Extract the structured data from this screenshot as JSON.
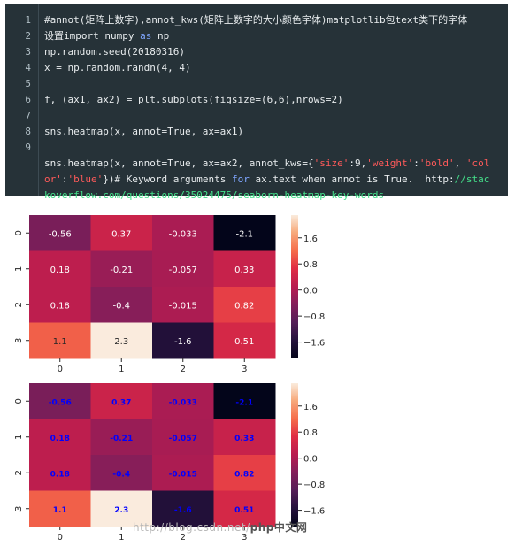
{
  "editor": {
    "line_numbers": [
      "1",
      "2",
      "3",
      "4",
      "5",
      "6",
      "7",
      "8",
      "9"
    ],
    "lines": [
      [
        {
          "t": "#annot(矩阵上数字),annot_kws(矩阵上数字的大小颜色字体)matplotlib包text类下的字体"
        }
      ],
      [
        {
          "t": "设置import numpy "
        },
        {
          "t": "as",
          "c": "kw"
        },
        {
          "t": " np"
        }
      ],
      [
        {
          "t": "np.random.seed(20180316)"
        }
      ],
      [
        {
          "t": "x = np.random.randn(4, 4)"
        }
      ],
      [
        {
          "t": ""
        }
      ],
      [
        {
          "t": "f, (ax1, ax2) = plt.subplots(figsize=(6,6),nrows=2)"
        }
      ],
      [
        {
          "t": ""
        }
      ],
      [
        {
          "t": "sns.heatmap(x, annot=True, ax=ax1)"
        }
      ],
      [
        {
          "t": ""
        }
      ],
      [
        {
          "t": "sns.heatmap(x, annot=True, ax=ax2, annot_kws={"
        },
        {
          "t": "'size'",
          "c": "str"
        },
        {
          "t": ":9,"
        },
        {
          "t": "'weight'",
          "c": "str"
        },
        {
          "t": ":"
        },
        {
          "t": "'bold'",
          "c": "str"
        },
        {
          "t": ", "
        },
        {
          "t": "'col",
          "c": "str"
        }
      ],
      [
        {
          "t": "or'",
          "c": "str"
        },
        {
          "t": ":"
        },
        {
          "t": "'blue'",
          "c": "str"
        },
        {
          "t": "})# Keyword arguments "
        },
        {
          "t": "for",
          "c": "kw"
        },
        {
          "t": " ax.text when annot is True.  http:"
        },
        {
          "t": "//stac",
          "c": "url"
        }
      ],
      [
        {
          "t": "koverflow.com/questions/35024475/seaborn-heatmap-key-words",
          "c": "url"
        }
      ]
    ]
  },
  "heatmap1": {
    "row_labels": [
      "0",
      "1",
      "2",
      "3"
    ],
    "col_labels": [
      "0",
      "1",
      "2",
      "3"
    ],
    "values": [
      [
        -0.56,
        0.37,
        -0.033,
        -2.1
      ],
      [
        0.18,
        -0.21,
        -0.057,
        0.33
      ],
      [
        0.18,
        -0.4,
        -0.015,
        0.82
      ],
      [
        1.1,
        2.3,
        -1.6,
        0.51
      ]
    ],
    "annotations": [
      [
        "-0.56",
        "0.37",
        "-0.033",
        "-2.1"
      ],
      [
        "0.18",
        "-0.21",
        "-0.057",
        "0.33"
      ],
      [
        "0.18",
        "-0.4",
        "-0.015",
        "0.82"
      ],
      [
        "1.1",
        "2.3",
        "-1.6",
        "0.51"
      ]
    ],
    "colorbar_ticks": [
      "1.6",
      "0.8",
      "0.0",
      "−0.8",
      "−1.6"
    ],
    "colorbar_tick_values": [
      1.6,
      0.8,
      0.0,
      -0.8,
      -1.6
    ],
    "vmin": -2.1,
    "vmax": 2.3,
    "annot_color": "auto"
  },
  "heatmap2": {
    "row_labels": [
      "0",
      "1",
      "2",
      "3"
    ],
    "col_labels": [
      "0",
      "1",
      "2",
      "3"
    ],
    "values": [
      [
        -0.56,
        0.37,
        -0.033,
        -2.1
      ],
      [
        0.18,
        -0.21,
        -0.057,
        0.33
      ],
      [
        0.18,
        -0.4,
        -0.015,
        0.82
      ],
      [
        1.1,
        2.3,
        -1.6,
        0.51
      ]
    ],
    "annotations": [
      [
        "-0.56",
        "0.37",
        "-0.033",
        "-2.1"
      ],
      [
        "0.18",
        "-0.21",
        "-0.057",
        "0.33"
      ],
      [
        "0.18",
        "-0.4",
        "-0.015",
        "0.82"
      ],
      [
        "1.1",
        "2.3",
        "-1.6",
        "0.51"
      ]
    ],
    "colorbar_ticks": [
      "1.6",
      "0.8",
      "0.0",
      "−0.8",
      "−1.6"
    ],
    "colorbar_tick_values": [
      1.6,
      0.8,
      0.0,
      -0.8,
      -1.6
    ],
    "vmin": -2.1,
    "vmax": 2.3,
    "annot_color": "#0000ff"
  },
  "watermark": {
    "text": "http://blog.csdn.net/",
    "logo": "php中文网"
  },
  "colors": {
    "editor_bg": "#263238",
    "keyword": "#7fa6ff",
    "string": "#ff5a5a",
    "url": "#44e08a",
    "annot_blue": "#0000ff"
  }
}
